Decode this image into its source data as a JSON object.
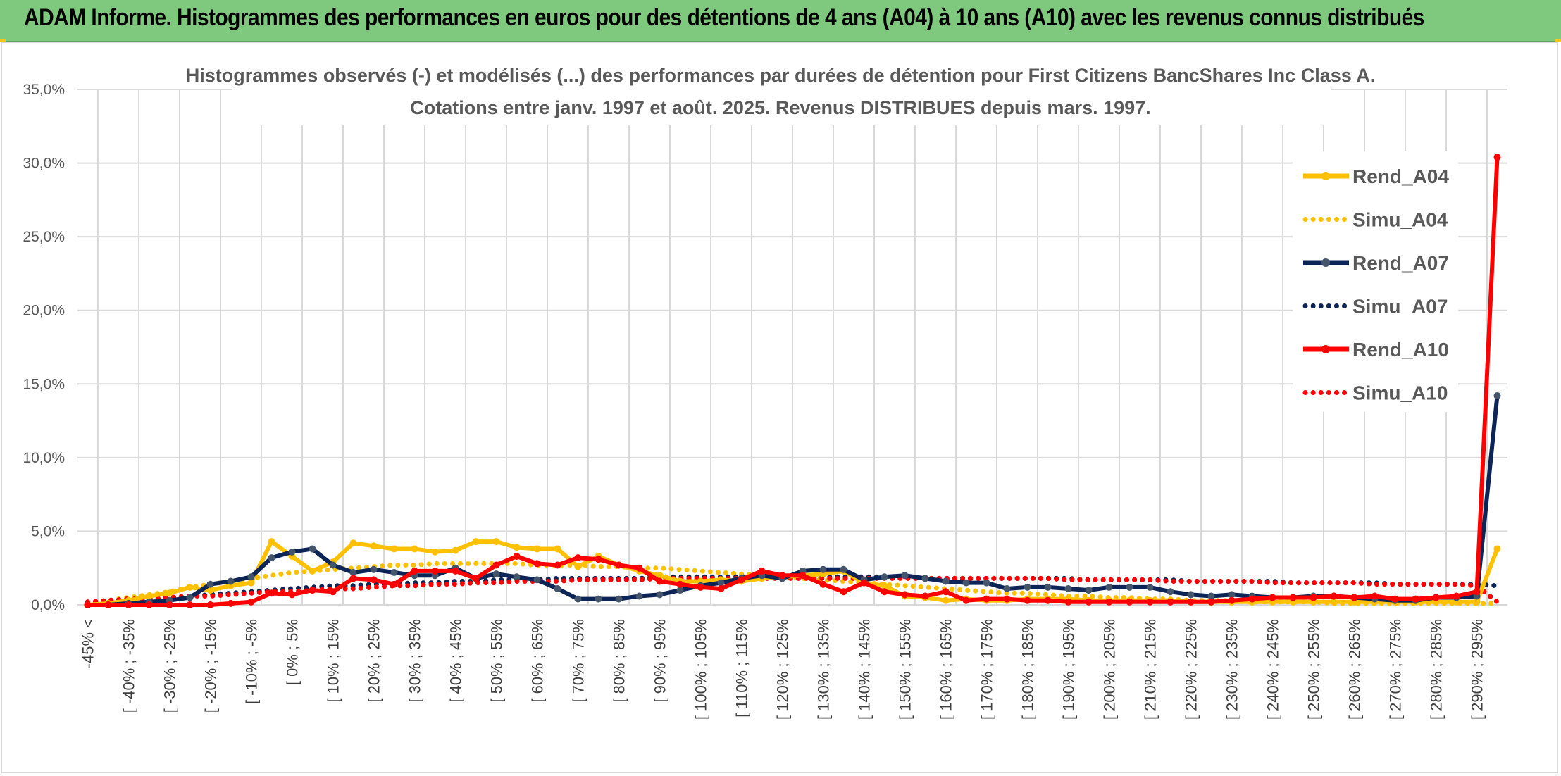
{
  "banner": {
    "title": "ADAM Informe. Histogrammes des performances en euros pour des détentions de 4 ans (A04) à 10 ans (A10) avec les revenus connus distribués"
  },
  "colors": {
    "banner_bg": "#7fc97f",
    "A04": "#ffc000",
    "A07": "#0d2456",
    "A07_marker": "#44546a",
    "A10": "#ff0000",
    "grid": "#d9d9d9"
  },
  "chart_data": {
    "type": "line",
    "title_lines": [
      "Histogrammes observés (-) et modélisés (...) des performances par durées de détention pour First Citizens BancShares Inc Class A.",
      "Cotations entre janv. 1997 et août. 2025. Revenus DISTRIBUES depuis mars. 1997."
    ],
    "ylim": [
      0,
      35
    ],
    "y_ticks": [
      "0,0%",
      "5,0%",
      "10,0%",
      "15,0%",
      "20,0%",
      "25,0%",
      "30,0%",
      "35,0%"
    ],
    "x_tick_labels": [
      "-45% <",
      "[ -40% ; -35%",
      "[ -30% ; -25%",
      "[ -20% ; -15%",
      "[ -10% ; -5%",
      "[ 0% ; 5%",
      "[ 10% ; 15%",
      "[ 20% ; 25%",
      "[ 30% ; 35%",
      "[ 40% ; 45%",
      "[ 50% ; 55%",
      "[ 60% ; 65%",
      "[ 70% ; 75%",
      "[ 80% ; 85%",
      "[ 90% ; 95%",
      "[ 100% ; 105%",
      "[ 110% ; 115%",
      "[ 120% ; 125%",
      "[ 130% ; 135%",
      "[ 140% ; 145%",
      "[ 150% ; 155%",
      "[ 160% ; 165%",
      "[ 170% ; 175%",
      "[ 180% ; 185%",
      "[ 190% ; 195%",
      "[ 200% ; 205%",
      "[ 210% ; 215%",
      "[ 220% ; 225%",
      "[ 230% ; 235%",
      "[ 240% ; 245%",
      "[ 250% ; 255%",
      "[ 260% ; 265%",
      "[ 270% ; 275%",
      "[ 280% ; 285%",
      "[ 290% ; 295%"
    ],
    "n_points": 70,
    "legend": {
      "placement": "right",
      "entries": [
        "Rend_A04",
        "Simu_A04",
        "Rend_A07",
        "Simu_A07",
        "Rend_A10",
        "Simu_A10"
      ]
    },
    "series": [
      {
        "name": "Rend_A04",
        "style": "solid",
        "color": "#ffc000",
        "values": [
          0.0,
          0.1,
          0.3,
          0.6,
          0.8,
          1.2,
          1.0,
          1.3,
          1.5,
          4.3,
          3.3,
          2.3,
          2.9,
          4.2,
          4.0,
          3.8,
          3.8,
          3.6,
          3.7,
          4.3,
          4.3,
          3.9,
          3.8,
          3.8,
          2.6,
          3.3,
          2.7,
          2.3,
          2.0,
          1.6,
          1.6,
          1.7,
          1.6,
          1.8,
          1.9,
          2.0,
          2.1,
          2.3,
          1.5,
          1.3,
          0.6,
          0.5,
          0.3,
          0.4,
          0.3,
          0.3,
          0.4,
          0.4,
          0.4,
          0.3,
          0.3,
          0.3,
          0.3,
          0.3,
          0.2,
          0.2,
          0.2,
          0.2,
          0.2,
          0.2,
          0.2,
          0.2,
          0.2,
          0.2,
          0.2,
          0.2,
          0.2,
          0.2,
          0.2,
          3.8
        ]
      },
      {
        "name": "Simu_A04",
        "style": "dotted",
        "color": "#ffc000",
        "values": [
          0.1,
          0.3,
          0.5,
          0.7,
          0.9,
          1.2,
          1.4,
          1.6,
          1.8,
          2.0,
          2.2,
          2.3,
          2.4,
          2.5,
          2.6,
          2.7,
          2.7,
          2.8,
          2.8,
          2.8,
          2.8,
          2.8,
          2.7,
          2.7,
          2.7,
          2.6,
          2.6,
          2.5,
          2.5,
          2.4,
          2.3,
          2.2,
          2.1,
          2.0,
          1.9,
          1.8,
          1.7,
          1.6,
          1.5,
          1.4,
          1.3,
          1.2,
          1.1,
          1.0,
          0.9,
          0.8,
          0.8,
          0.7,
          0.6,
          0.6,
          0.5,
          0.5,
          0.4,
          0.4,
          0.3,
          0.3,
          0.3,
          0.2,
          0.2,
          0.2,
          0.2,
          0.1,
          0.1,
          0.1,
          0.1,
          0.1,
          0.1,
          0.1,
          0.1,
          0.1
        ]
      },
      {
        "name": "Rend_A07",
        "style": "solid",
        "color": "#0d2456",
        "values": [
          0.0,
          0.0,
          0.1,
          0.2,
          0.3,
          0.5,
          1.4,
          1.6,
          1.9,
          3.2,
          3.6,
          3.8,
          2.7,
          2.2,
          2.4,
          2.2,
          2.0,
          2.0,
          2.5,
          1.8,
          2.1,
          1.9,
          1.7,
          1.1,
          0.4,
          0.4,
          0.4,
          0.6,
          0.7,
          1.0,
          1.3,
          1.5,
          1.8,
          2.0,
          1.8,
          2.3,
          2.4,
          2.4,
          1.7,
          1.9,
          2.0,
          1.8,
          1.6,
          1.5,
          1.5,
          1.1,
          1.2,
          1.2,
          1.1,
          1.0,
          1.2,
          1.2,
          1.2,
          0.9,
          0.7,
          0.6,
          0.7,
          0.6,
          0.5,
          0.5,
          0.6,
          0.6,
          0.5,
          0.4,
          0.3,
          0.3,
          0.5,
          0.5,
          0.6,
          14.2
        ]
      },
      {
        "name": "Simu_A07",
        "style": "dotted",
        "color": "#0d2456",
        "values": [
          0.2,
          0.3,
          0.4,
          0.4,
          0.5,
          0.6,
          0.7,
          0.8,
          0.9,
          1.0,
          1.1,
          1.2,
          1.3,
          1.3,
          1.4,
          1.4,
          1.5,
          1.5,
          1.6,
          1.6,
          1.7,
          1.7,
          1.7,
          1.8,
          1.8,
          1.8,
          1.8,
          1.8,
          1.9,
          1.9,
          1.9,
          1.9,
          1.9,
          1.9,
          1.9,
          1.9,
          1.9,
          1.9,
          1.9,
          1.9,
          1.9,
          1.8,
          1.8,
          1.8,
          1.8,
          1.8,
          1.8,
          1.8,
          1.8,
          1.7,
          1.7,
          1.7,
          1.7,
          1.7,
          1.6,
          1.6,
          1.6,
          1.6,
          1.6,
          1.5,
          1.5,
          1.5,
          1.5,
          1.5,
          1.4,
          1.4,
          1.4,
          1.4,
          1.4,
          1.3
        ]
      },
      {
        "name": "Rend_A10",
        "style": "solid",
        "color": "#ff0000",
        "values": [
          0.0,
          0.0,
          0.0,
          0.0,
          0.0,
          0.0,
          0.0,
          0.1,
          0.2,
          0.8,
          0.7,
          1.0,
          0.9,
          1.8,
          1.7,
          1.4,
          2.3,
          2.3,
          2.3,
          1.8,
          2.7,
          3.3,
          2.8,
          2.7,
          3.2,
          3.1,
          2.7,
          2.5,
          1.6,
          1.4,
          1.2,
          1.1,
          1.7,
          2.3,
          2.0,
          2.0,
          1.4,
          0.9,
          1.5,
          0.9,
          0.7,
          0.6,
          0.9,
          0.3,
          0.4,
          0.4,
          0.3,
          0.3,
          0.2,
          0.2,
          0.2,
          0.2,
          0.2,
          0.2,
          0.2,
          0.2,
          0.3,
          0.4,
          0.5,
          0.5,
          0.5,
          0.6,
          0.5,
          0.6,
          0.4,
          0.4,
          0.5,
          0.6,
          0.9,
          30.4
        ]
      },
      {
        "name": "Simu_A10",
        "style": "dotted",
        "color": "#ff0000",
        "values": [
          0.2,
          0.3,
          0.4,
          0.4,
          0.5,
          0.6,
          0.6,
          0.7,
          0.8,
          0.9,
          0.9,
          1.0,
          1.1,
          1.1,
          1.2,
          1.3,
          1.3,
          1.4,
          1.4,
          1.5,
          1.5,
          1.6,
          1.6,
          1.6,
          1.7,
          1.7,
          1.7,
          1.7,
          1.8,
          1.8,
          1.8,
          1.8,
          1.8,
          1.8,
          1.8,
          1.8,
          1.8,
          1.8,
          1.8,
          1.8,
          1.8,
          1.8,
          1.8,
          1.8,
          1.8,
          1.8,
          1.8,
          1.8,
          1.7,
          1.7,
          1.7,
          1.7,
          1.7,
          1.6,
          1.6,
          1.6,
          1.6,
          1.6,
          1.5,
          1.5,
          1.5,
          1.5,
          1.5,
          1.4,
          1.4,
          1.4,
          1.4,
          1.4,
          1.3,
          0.2
        ]
      }
    ]
  }
}
